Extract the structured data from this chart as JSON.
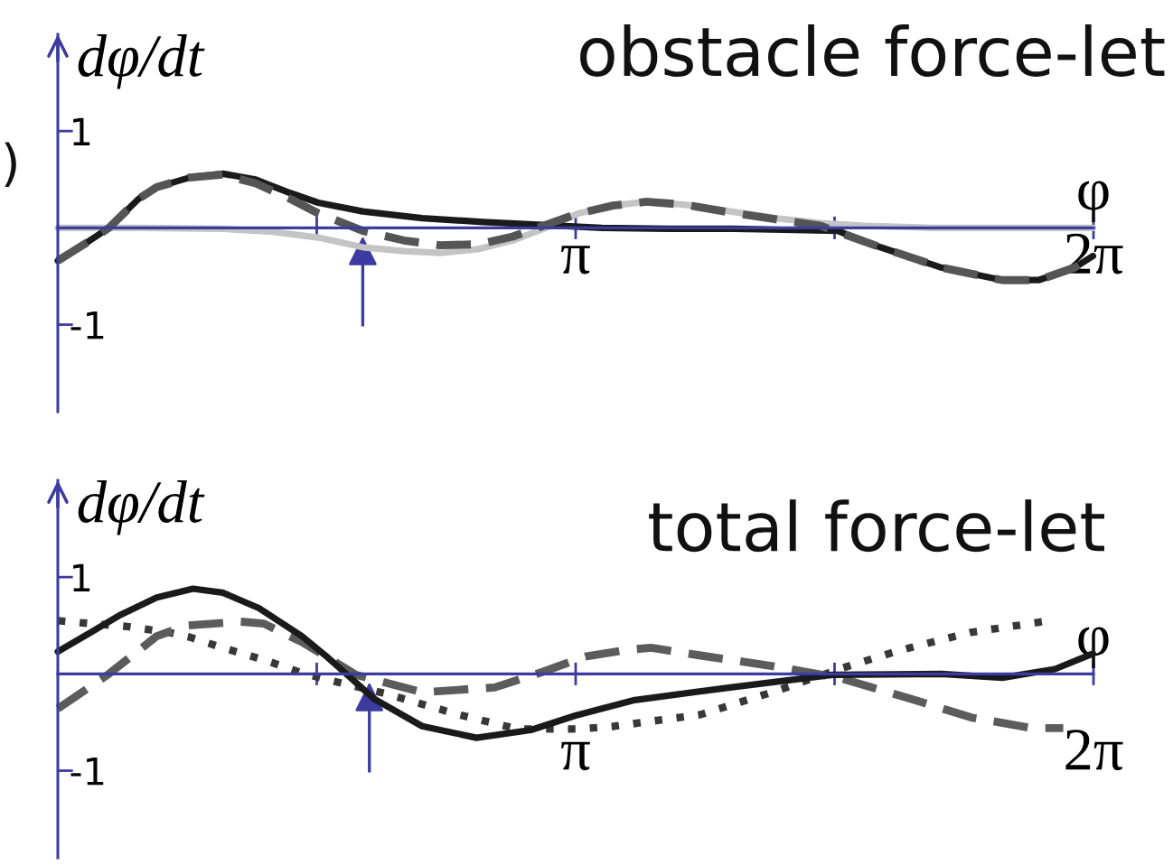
{
  "chart_data": [
    {
      "type": "line",
      "title": "obstacle force-let",
      "xlabel": "φ",
      "ylabel": "dφ/dt",
      "xlim": [
        0,
        6.2832
      ],
      "ylim": [
        -1.9,
        2.0
      ],
      "xticks": [
        {
          "value": 1.5708,
          "label": null
        },
        {
          "value": 3.1416,
          "label": "π"
        },
        {
          "value": 4.7124,
          "label": null
        },
        {
          "value": 6.2832,
          "label": "2π"
        }
      ],
      "yticks": [
        -1,
        1
      ],
      "series": [
        {
          "color": "#c4c4c4",
          "line_style": "solid",
          "x": [
            0,
            0.5,
            1.0,
            1.3,
            1.58,
            1.85,
            2.1,
            2.32,
            2.55,
            2.76,
            2.96,
            3.16,
            3.37,
            3.57,
            3.8,
            4.08,
            4.35,
            4.63,
            4.9,
            5.3,
            5.8,
            6.28
          ],
          "values": [
            0,
            0,
            -0.01,
            -0.04,
            -0.1,
            -0.2,
            -0.24,
            -0.26,
            -0.22,
            -0.13,
            0,
            0.15,
            0.23,
            0.27,
            0.24,
            0.17,
            0.1,
            0.05,
            0.02,
            0,
            0,
            0
          ]
        },
        {
          "color": "#1a1a1a",
          "line_style": "solid",
          "x": [
            0,
            0.16,
            0.31,
            0.49,
            0.6,
            0.8,
            1.0,
            1.2,
            1.41,
            1.58,
            1.85,
            2.21,
            2.58,
            2.94,
            3.3,
            3.7,
            4.1,
            4.4,
            4.73,
            4.99,
            5.36,
            5.73,
            5.95,
            6.17,
            6.28
          ],
          "values": [
            -0.34,
            -0.17,
            0,
            0.3,
            0.42,
            0.52,
            0.56,
            0.5,
            0.36,
            0.26,
            0.17,
            0.1,
            0.06,
            0.03,
            0,
            -0.01,
            -0.01,
            -0.02,
            -0.03,
            -0.2,
            -0.41,
            -0.54,
            -0.54,
            -0.41,
            -0.29
          ]
        },
        {
          "color": "#555555",
          "line_style": "dashed",
          "x": [
            0,
            0.16,
            0.31,
            0.49,
            0.6,
            0.8,
            1.0,
            1.2,
            1.41,
            1.58,
            1.85,
            2.1,
            2.32,
            2.55,
            2.76,
            2.96,
            3.16,
            3.37,
            3.57,
            3.8,
            4.08,
            4.35,
            4.63,
            4.99,
            5.36,
            5.73,
            5.95,
            6.17,
            6.28
          ],
          "values": [
            -0.34,
            -0.17,
            0,
            0.3,
            0.42,
            0.52,
            0.55,
            0.46,
            0.3,
            0.15,
            -0.03,
            -0.13,
            -0.18,
            -0.17,
            -0.09,
            0.03,
            0.15,
            0.23,
            0.27,
            0.24,
            0.16,
            0.09,
            0.02,
            -0.2,
            -0.41,
            -0.54,
            -0.54,
            -0.41,
            -0.29
          ]
        }
      ],
      "ref_lines": [
        {
          "axis": "x",
          "value": 1.85,
          "color": "#3b3ba0"
        }
      ],
      "annotations": [
        ")"
      ]
    },
    {
      "type": "line",
      "title": "total force-let",
      "xlabel": "φ",
      "ylabel": "dφ/dt",
      "xlim": [
        0,
        6.2832
      ],
      "ylim": [
        -1.9,
        2.0
      ],
      "xticks": [
        {
          "value": 1.5708,
          "label": null
        },
        {
          "value": 3.1416,
          "label": "π"
        },
        {
          "value": 4.7124,
          "label": null
        },
        {
          "value": 6.2832,
          "label": "2π"
        }
      ],
      "yticks": [
        -1,
        1
      ],
      "series": [
        {
          "color": "#383838",
          "line_style": "dotted",
          "x": [
            0,
            0.2,
            0.42,
            0.67,
            0.8,
            1.0,
            1.26,
            1.48,
            1.66,
            1.98,
            2.43,
            2.79,
            3.16,
            3.38,
            3.9,
            4.37,
            4.74,
            5.1,
            5.54,
            6.02
          ],
          "values": [
            0.55,
            0.52,
            0.49,
            0.43,
            0.38,
            0.27,
            0.14,
            0.01,
            -0.07,
            -0.2,
            -0.42,
            -0.57,
            -0.57,
            -0.54,
            -0.42,
            -0.17,
            0.05,
            0.24,
            0.43,
            0.55
          ]
        },
        {
          "color": "#5c5c5c",
          "line_style": "dashed",
          "x": [
            0,
            0.31,
            0.6,
            0.78,
            1.11,
            1.25,
            1.48,
            1.81,
            2.21,
            2.65,
            2.94,
            3.2,
            3.46,
            3.6,
            3.9,
            4.34,
            4.74,
            5.18,
            5.54,
            5.91,
            6.1
          ],
          "values": [
            -0.36,
            0,
            0.39,
            0.5,
            0.54,
            0.52,
            0.33,
            -0.01,
            -0.19,
            -0.14,
            0.02,
            0.18,
            0.25,
            0.27,
            0.19,
            0.08,
            -0.04,
            -0.26,
            -0.45,
            -0.56,
            -0.56
          ]
        },
        {
          "color": "#1a1a1a",
          "line_style": "solid",
          "x": [
            0,
            0.2,
            0.38,
            0.6,
            0.82,
            1.0,
            1.22,
            1.48,
            1.63,
            1.75,
            1.92,
            2.21,
            2.54,
            2.87,
            3.14,
            3.5,
            4.08,
            4.7,
            5.36,
            5.73,
            6.05,
            6.28
          ],
          "values": [
            0.23,
            0.43,
            0.61,
            0.79,
            0.88,
            0.84,
            0.68,
            0.39,
            0.18,
            0,
            -0.26,
            -0.54,
            -0.66,
            -0.58,
            -0.43,
            -0.27,
            -0.14,
            -0.01,
            0,
            -0.04,
            0.05,
            0.21
          ]
        }
      ],
      "ref_lines": [
        {
          "axis": "x",
          "value": 1.89,
          "color": "#3b3ba0"
        }
      ]
    }
  ]
}
